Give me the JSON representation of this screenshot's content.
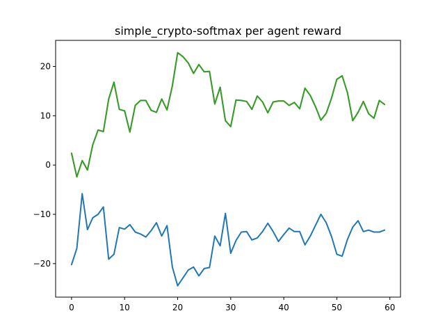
{
  "chart_data": {
    "type": "line",
    "title": "simple_crypto-softmax per agent reward",
    "xlabel": "",
    "ylabel": "",
    "xlim": [
      -3,
      62
    ],
    "ylim": [
      -26.8,
      25.3
    ],
    "grid": false,
    "xticks": [
      0,
      10,
      20,
      30,
      40,
      50,
      60
    ],
    "yticks": [
      -20,
      -10,
      0,
      10,
      20
    ],
    "x": [
      0,
      1,
      2,
      3,
      4,
      5,
      6,
      7,
      8,
      9,
      10,
      11,
      12,
      13,
      14,
      15,
      16,
      17,
      18,
      19,
      20,
      21,
      22,
      23,
      24,
      25,
      26,
      27,
      28,
      29,
      30,
      31,
      32,
      33,
      34,
      35,
      36,
      37,
      38,
      39,
      40,
      41,
      42,
      43,
      44,
      45,
      46,
      47,
      48,
      49,
      50,
      51,
      52,
      53,
      54,
      55,
      56,
      57,
      58,
      59
    ],
    "series": [
      {
        "color": "#1f77b4",
        "values": [
          -20.2,
          -16.9,
          -5.8,
          -13.1,
          -10.7,
          -10.0,
          -8.5,
          -19.1,
          -18.1,
          -12.7,
          -13.0,
          -12.1,
          -13.6,
          -14.0,
          -14.6,
          -13.3,
          -11.7,
          -14.4,
          -12.3,
          -20.7,
          -24.5,
          -22.9,
          -21.3,
          -20.7,
          -22.5,
          -21.0,
          -20.8,
          -14.4,
          -16.4,
          -9.8,
          -17.9,
          -15.3,
          -13.6,
          -13.5,
          -15.2,
          -14.8,
          -13.5,
          -11.8,
          -13.5,
          -15.5,
          -14.1,
          -12.8,
          -13.5,
          -13.5,
          -16.2,
          -14.4,
          -12.2,
          -10.0,
          -11.7,
          -14.5,
          -18.1,
          -18.5,
          -15.1,
          -12.6,
          -11.3,
          -13.5,
          -13.2,
          -13.6,
          -13.6,
          -13.2
        ]
      },
      {
        "color": "#ff7f0e",
        "values": [
          2.4,
          -2.4,
          0.9,
          -1.0,
          4.1,
          7.1,
          6.8,
          13.4,
          16.8,
          11.3,
          11.0,
          6.7,
          12.1,
          13.1,
          13.1,
          11.1,
          10.7,
          13.4,
          11.2,
          16.1,
          22.8,
          22.0,
          20.7,
          18.6,
          20.4,
          18.9,
          19.0,
          12.4,
          15.8,
          9.0,
          7.8,
          13.2,
          13.1,
          12.9,
          11.3,
          14.0,
          12.8,
          10.6,
          12.8,
          13.0,
          13.0,
          12.1,
          12.7,
          11.4,
          15.6,
          14.1,
          11.8,
          9.1,
          10.5,
          13.6,
          17.4,
          18.1,
          14.7,
          9.0,
          10.7,
          12.9,
          10.4,
          9.5,
          13.1,
          12.3
        ]
      },
      {
        "color": "#2ca02c",
        "values": [
          2.4,
          -2.4,
          0.9,
          -1.0,
          4.1,
          7.1,
          6.8,
          13.4,
          16.8,
          11.3,
          11.0,
          6.7,
          12.1,
          13.1,
          13.1,
          11.1,
          10.7,
          13.4,
          11.2,
          16.1,
          22.8,
          22.0,
          20.7,
          18.6,
          20.4,
          18.9,
          19.0,
          12.4,
          15.8,
          9.0,
          7.8,
          13.2,
          13.1,
          12.9,
          11.3,
          14.0,
          12.8,
          10.6,
          12.8,
          13.0,
          13.0,
          12.1,
          12.7,
          11.4,
          15.6,
          14.1,
          11.8,
          9.1,
          10.5,
          13.6,
          17.4,
          18.1,
          14.7,
          9.0,
          10.7,
          12.9,
          10.4,
          9.5,
          13.1,
          12.3
        ]
      }
    ]
  }
}
